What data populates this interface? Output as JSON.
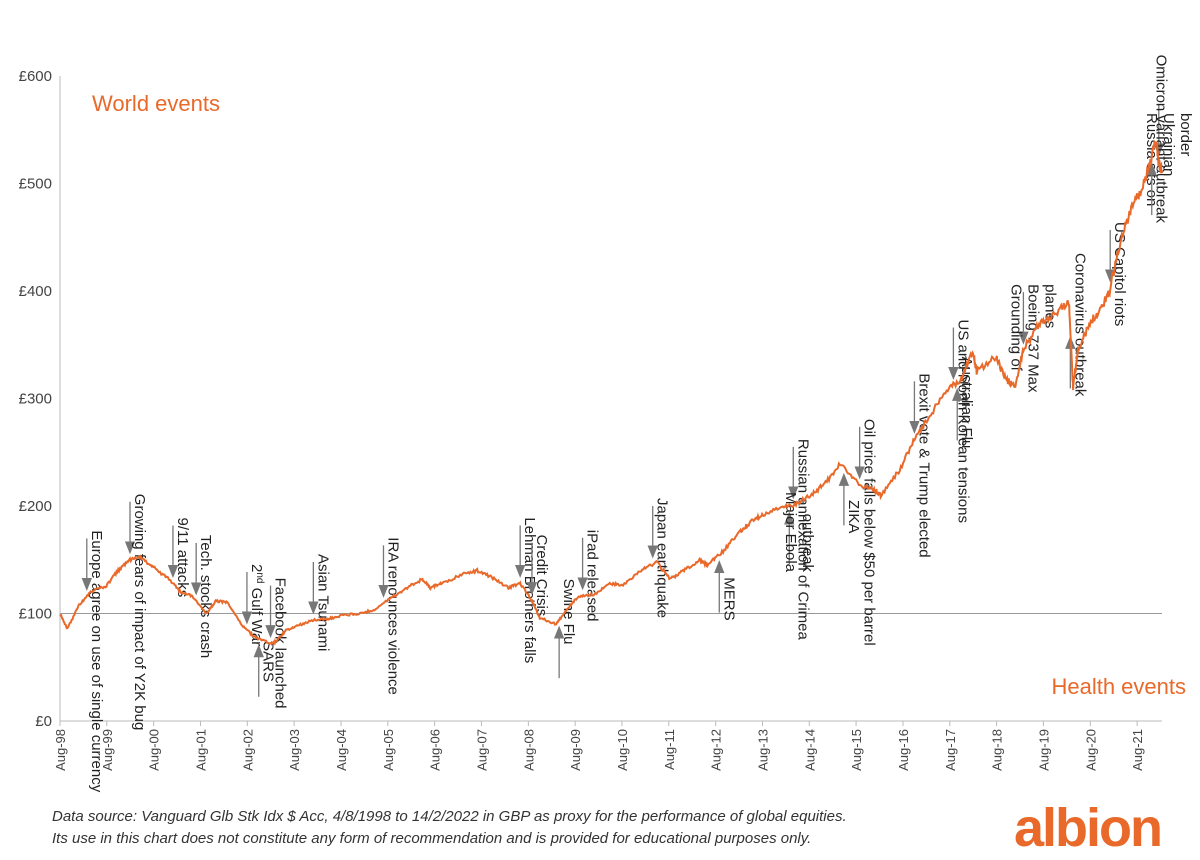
{
  "chart_data": {
    "type": "line",
    "ylim": [
      0,
      600
    ],
    "xlim": [
      "1998-08-04",
      "2022-02-14"
    ],
    "y_ticks": [
      "£0",
      "£100",
      "£200",
      "£300",
      "£400",
      "£500",
      "£600"
    ],
    "x_ticks": [
      "Aug-98",
      "Aug-99",
      "Aug-00",
      "Aug-01",
      "Aug-02",
      "Aug-03",
      "Aug-04",
      "Aug-05",
      "Aug-06",
      "Aug-07",
      "Aug-08",
      "Aug-09",
      "Aug-10",
      "Aug-11",
      "Aug-12",
      "Aug-13",
      "Aug-14",
      "Aug-15",
      "Aug-16",
      "Aug-17",
      "Aug-18",
      "Aug-19",
      "Aug-20",
      "Aug-21"
    ],
    "reference_line": 100,
    "grid": false,
    "line_color": "#e8692a",
    "series": [
      {
        "x": [
          "1998-08-04",
          "1998-10-01",
          "1999-01-01",
          "1999-04-01",
          "1999-08-01",
          "1999-11-01",
          "2000-02-01",
          "2000-05-01",
          "2000-08-01",
          "2000-12-01",
          "2001-03-01",
          "2001-06-01",
          "2001-09-20",
          "2001-12-01",
          "2002-03-01",
          "2002-07-01",
          "2002-10-01",
          "2003-02-01",
          "2003-03-15",
          "2003-06-01",
          "2003-10-01",
          "2004-01-01",
          "2004-05-01",
          "2004-08-01",
          "2005-01-01",
          "2005-05-01",
          "2005-09-01",
          "2006-01-01",
          "2006-05-01",
          "2006-07-01",
          "2006-10-01",
          "2007-03-01",
          "2007-07-01",
          "2007-11-01",
          "2008-03-01",
          "2008-06-01",
          "2008-09-01",
          "2008-11-01",
          "2009-03-09",
          "2009-06-01",
          "2009-09-01",
          "2010-01-01",
          "2010-05-01",
          "2010-08-01",
          "2011-01-01",
          "2011-05-01",
          "2011-08-15",
          "2011-12-01",
          "2012-04-01",
          "2012-06-01",
          "2012-10-01",
          "2013-02-01",
          "2013-05-01",
          "2013-08-01",
          "2014-01-01",
          "2014-05-01",
          "2014-09-01",
          "2014-12-01",
          "2015-04-01",
          "2015-08-25",
          "2016-01-01",
          "2016-02-12",
          "2016-07-01",
          "2016-11-01",
          "2017-03-01",
          "2017-07-01",
          "2017-11-01",
          "2018-01-26",
          "2018-03-01",
          "2018-08-01",
          "2018-10-01",
          "2018-12-24",
          "2019-03-01",
          "2019-07-01",
          "2019-10-01",
          "2020-02-19",
          "2020-03-23",
          "2020-05-01",
          "2020-08-01",
          "2020-11-01",
          "2021-01-01",
          "2021-04-01",
          "2021-07-01",
          "2021-10-01",
          "2021-12-31",
          "2022-01-20",
          "2022-02-14"
        ],
        "values": [
          100,
          86,
          108,
          120,
          126,
          140,
          150,
          152,
          143,
          132,
          120,
          116,
          100,
          112,
          110,
          88,
          78,
          72,
          74,
          84,
          90,
          94,
          95,
          98,
          100,
          104,
          115,
          124,
          132,
          124,
          128,
          136,
          140,
          133,
          124,
          128,
          112,
          96,
          90,
          104,
          116,
          118,
          128,
          126,
          140,
          148,
          132,
          140,
          150,
          145,
          158,
          175,
          185,
          192,
          198,
          202,
          212,
          220,
          240,
          220,
          214,
          210,
          232,
          262,
          284,
          306,
          318,
          344,
          325,
          340,
          320,
          310,
          345,
          370,
          375,
          390,
          310,
          345,
          370,
          385,
          400,
          450,
          480,
          500,
          540,
          520,
          510
        ]
      }
    ],
    "events_world": [
      "Europe agree on use of single currency",
      "Growing fears of impact of Y2K bug",
      "Tech. stocks crash",
      "9/11 attacks",
      "2nd Gulf War",
      "Facebook launched",
      "Asian Tsunami",
      "IRA renounces violence",
      "Lehman Brothers falls",
      "Credit Crisis",
      "iPad released",
      "Japan earthquake",
      "Russian annexation of Crimea",
      "Oil price falls below $50 per barrel",
      "Brexit vote & Trump elected",
      "US and North Korean tensions",
      "Grounding of Boeing 737 Max planes",
      "US Capitol riots",
      "Russia sits on Ukrainian border"
    ],
    "events_health": [
      "SARS",
      "Swine Flu",
      "MERS",
      "Major Ebola outbreak",
      "ZIKA",
      "Australian Flu",
      "Coronavirus outbreak",
      "Omicron variant outbreak"
    ]
  },
  "labels": {
    "world_events": "World events",
    "health_events": "Health events",
    "source_line_1": "Data source: Vanguard Glb Stk Idx $ Acc, 4/8/1998 to 14/2/2022 in GBP as proxy for the performance of global equities.",
    "source_line_2": "Its use in this chart does not constitute any form of recommendation and is provided for educational purposes only.",
    "logo": "albion"
  },
  "annotations": [
    {
      "lines": [
        "Europe agree on use of single currency"
      ],
      "date": "1999-03-01",
      "dir": "down"
    },
    {
      "lines": [
        "Growing fears of impact of Y2K bug"
      ],
      "date": "2000-02-01",
      "dir": "down"
    },
    {
      "lines": [
        "Tech. stocks crash"
      ],
      "date": "2001-07-01",
      "dir": "down"
    },
    {
      "lines": [
        "9/11 attacks"
      ],
      "date": "2001-01-01",
      "dir": "down"
    },
    {
      "lines": [
        "2nd Gulf War"
      ],
      "sup": true,
      "date": "2002-08-01",
      "dir": "down"
    },
    {
      "lines": [
        "Facebook launched"
      ],
      "date": "2003-02-01",
      "dir": "down"
    },
    {
      "lines": [
        "Asian Tsunami"
      ],
      "date": "2004-01-01",
      "dir": "down"
    },
    {
      "lines": [
        "IRA renounces violence"
      ],
      "date": "2005-07-01",
      "dir": "down"
    },
    {
      "lines": [
        "Lehman Brothers falls"
      ],
      "date": "2008-06-01",
      "dir": "down"
    },
    {
      "lines": [
        "Credit Crisis"
      ],
      "date": "2008-09-01",
      "dir": "down"
    },
    {
      "lines": [
        "iPad released"
      ],
      "date": "2009-10-01",
      "dir": "down"
    },
    {
      "lines": [
        "Japan earthquake"
      ],
      "date": "2011-04-01",
      "dir": "down"
    },
    {
      "lines": [
        "Russian annexation of Crimea"
      ],
      "date": "2014-04-01",
      "dir": "down"
    },
    {
      "lines": [
        "Oil price falls below $50 per barrel"
      ],
      "date": "2015-09-01",
      "dir": "down"
    },
    {
      "lines": [
        "Brexit vote & Trump elected"
      ],
      "date": "2016-11-01",
      "dir": "down"
    },
    {
      "lines": [
        "US and North Korean tensions"
      ],
      "date": "2017-09-01",
      "dir": "down"
    },
    {
      "lines": [
        "Grounding of",
        "Boeing 737 Max",
        "planes"
      ],
      "date": "2019-03-01",
      "dir": "down"
    },
    {
      "lines": [
        "US Capitol riots"
      ],
      "date": "2021-01-06",
      "dir": "down"
    },
    {
      "lines": [
        "Russia sits on",
        "Ukrainian",
        "border"
      ],
      "date": "2022-01-20",
      "dir": "down"
    },
    {
      "lines": [
        "SARS"
      ],
      "date": "2002-11-01",
      "dir": "up"
    },
    {
      "lines": [
        "Swine Flu"
      ],
      "date": "2009-04-01",
      "dir": "up"
    },
    {
      "lines": [
        "MERS"
      ],
      "date": "2012-09-01",
      "dir": "up"
    },
    {
      "lines": [
        "Major Ebola",
        "outbreak"
      ],
      "date": "2014-03-01",
      "dir": "up"
    },
    {
      "lines": [
        "ZIKA"
      ],
      "date": "2015-05-01",
      "dir": "up"
    },
    {
      "lines": [
        "Australian Flu"
      ],
      "date": "2017-10-01",
      "dir": "up"
    },
    {
      "lines": [
        "Coronavirus outbreak"
      ],
      "date": "2020-03-01",
      "dir": "up"
    },
    {
      "lines": [
        "Omicron variant outbreak"
      ],
      "date": "2021-11-26",
      "dir": "up"
    }
  ]
}
